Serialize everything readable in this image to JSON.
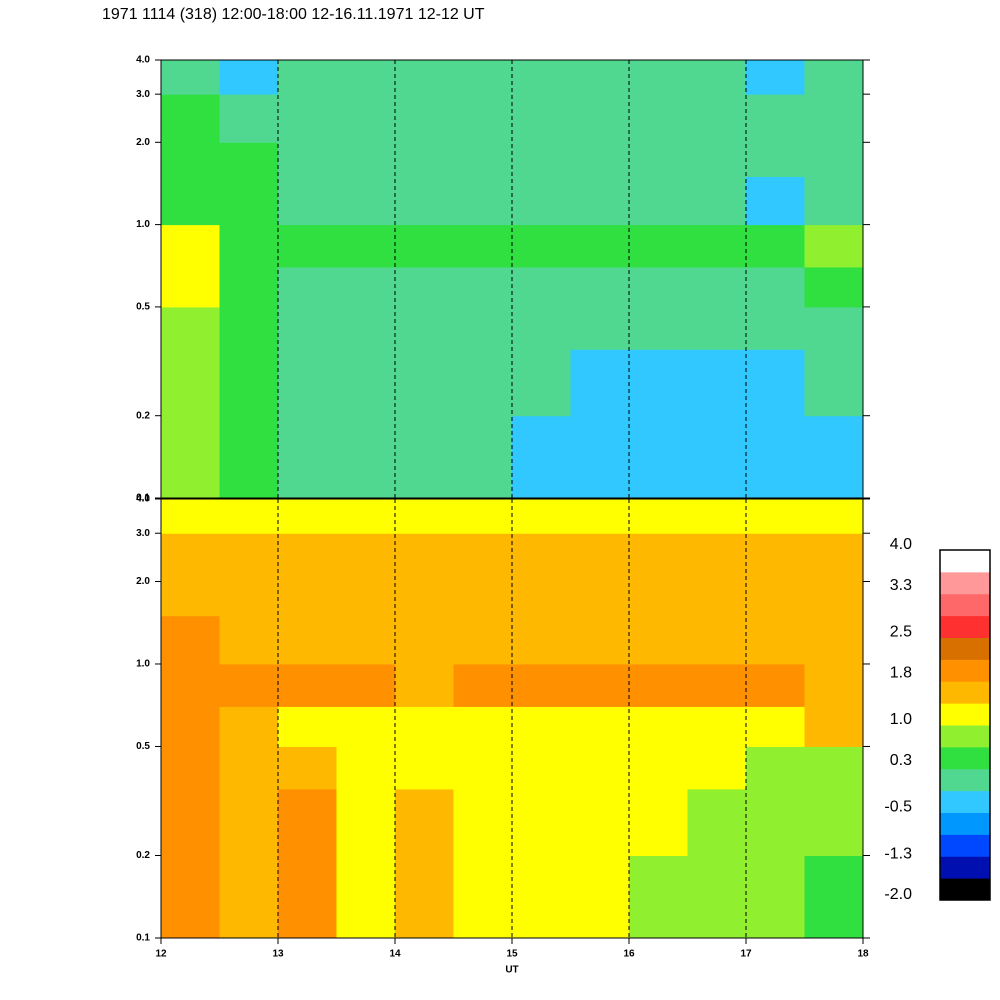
{
  "chart_data": {
    "type": "heatmap",
    "title": "1971 1114 (318) 12:00-18:00 12-16.11.1971  12-12 UT",
    "xlabel": "UT",
    "xlim": [
      12,
      18
    ],
    "xticks": [
      12,
      13,
      14,
      15,
      16,
      17,
      18
    ],
    "ylim": [
      0.1,
      4.0
    ],
    "yticks": [
      0.1,
      0.2,
      0.5,
      {
        "value": 1,
        "label": "1.0"
      },
      {
        "value": 2,
        "label": "2.0"
      },
      {
        "value": 3,
        "label": "3.0"
      },
      {
        "value": 4,
        "label": "4.0"
      }
    ],
    "log_y": true,
    "x_bins": [
      12,
      12.5,
      13,
      13.5,
      14,
      14.5,
      15,
      15.5,
      16,
      16.5,
      17,
      17.5,
      18
    ],
    "y_bins": [
      0.1,
      0.2,
      0.35,
      0.5,
      0.7,
      1.0,
      1.5,
      2.0,
      3.0,
      4.0
    ],
    "panels": [
      {
        "values": [
          [
            0.8,
            0.4,
            0.2,
            0.0,
            0.0,
            -0.1,
            -0.3,
            -0.4,
            -0.5,
            -0.5,
            -0.4,
            -0.3
          ],
          [
            0.8,
            0.4,
            0.2,
            0.1,
            0.1,
            0.0,
            -0.1,
            -0.2,
            -0.2,
            -0.3,
            -0.2,
            -0.1
          ],
          [
            0.9,
            0.5,
            0.2,
            0.1,
            0.1,
            0.0,
            0.0,
            0.0,
            -0.1,
            -0.1,
            0.0,
            0.0
          ],
          [
            1.0,
            0.5,
            0.1,
            0.1,
            0.1,
            0.0,
            0.0,
            0.0,
            0.0,
            0.1,
            0.2,
            0.3
          ],
          [
            1.1,
            0.6,
            0.5,
            0.4,
            0.6,
            0.5,
            0.4,
            0.5,
            0.5,
            0.5,
            0.6,
            0.7
          ],
          [
            0.6,
            0.3,
            0.1,
            0.2,
            0.2,
            0.2,
            0.1,
            0.2,
            0.2,
            0.1,
            -0.2,
            0.1
          ],
          [
            0.5,
            0.3,
            0.2,
            0.2,
            0.1,
            0.2,
            0.2,
            0.2,
            0.2,
            0.2,
            -0.1,
            0.2
          ],
          [
            0.3,
            0.1,
            0.1,
            0.1,
            0.1,
            0.1,
            0.1,
            0.1,
            0.1,
            0.1,
            -0.1,
            0.1
          ],
          [
            0.0,
            -0.2,
            -0.1,
            -0.1,
            -0.1,
            -0.1,
            -0.1,
            -0.1,
            -0.1,
            -0.1,
            -0.2,
            -0.1
          ]
        ]
      },
      {
        "values": [
          [
            2.0,
            1.6,
            1.9,
            1.2,
            1.4,
            1.0,
            1.0,
            1.0,
            0.9,
            0.8,
            0.7,
            0.6
          ],
          [
            2.0,
            1.6,
            1.8,
            1.3,
            1.4,
            1.1,
            1.1,
            1.0,
            1.0,
            0.9,
            0.8,
            0.8
          ],
          [
            2.0,
            1.5,
            1.5,
            1.2,
            1.3,
            1.0,
            1.0,
            1.0,
            1.0,
            1.0,
            0.9,
            0.9
          ],
          [
            2.0,
            1.5,
            1.3,
            1.2,
            1.2,
            1.1,
            1.1,
            1.1,
            1.0,
            1.1,
            1.2,
            1.5
          ],
          [
            2.0,
            1.8,
            1.8,
            1.8,
            1.7,
            1.8,
            1.9,
            1.9,
            1.9,
            1.8,
            1.8,
            1.7
          ],
          [
            1.8,
            1.5,
            1.4,
            1.4,
            1.4,
            1.5,
            1.5,
            1.5,
            1.5,
            1.5,
            1.4,
            1.4
          ],
          [
            1.6,
            1.5,
            1.5,
            1.5,
            1.5,
            1.6,
            1.6,
            1.5,
            1.5,
            1.5,
            1.4,
            1.4
          ],
          [
            1.7,
            1.6,
            1.6,
            1.6,
            1.6,
            1.6,
            1.6,
            1.6,
            1.6,
            1.6,
            1.5,
            1.5
          ],
          [
            1.2,
            1.1,
            1.1,
            1.1,
            1.1,
            1.1,
            1.1,
            1.1,
            1.1,
            1.1,
            1.0,
            1.0
          ]
        ]
      }
    ],
    "colorbar": {
      "clim": [
        -2,
        4
      ],
      "colors": [
        "#000000",
        "#0010b0",
        "#0048ff",
        "#0098ff",
        "#30c8ff",
        "#50d890",
        "#30e040",
        "#90f030",
        "#ffff00",
        "#ffb800",
        "#ff9000",
        "#d87000",
        "#ff3030",
        "#ff6868",
        "#ff9898",
        "#ffffff"
      ],
      "ticks": [
        {
          "value": 4,
          "label": "4.0"
        },
        3.3,
        2.5,
        1.8,
        {
          "value": 1,
          "label": "1.0"
        },
        0.3,
        -0.5,
        -1.3,
        {
          "value": -2,
          "label": "-2.0"
        }
      ]
    }
  }
}
